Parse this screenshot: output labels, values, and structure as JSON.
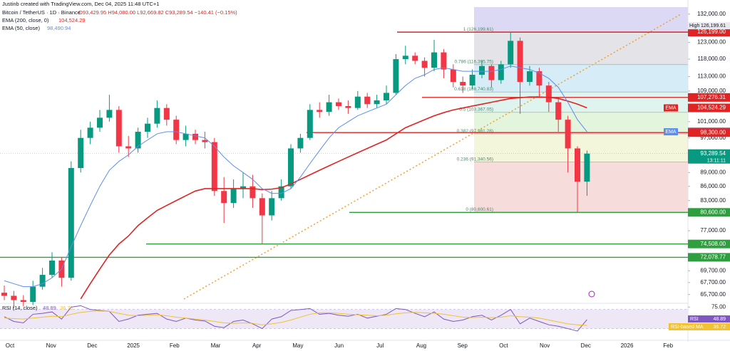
{
  "header": {
    "author_line": "Justinb created with TradingView.com, Dec 04, 2025 11:48 UTC+1",
    "symbol_line": "Bitcoin / TetherUS · 1D · Binance",
    "ohlc": "O93,429.95 H94,080.00 L92,669.82 C93,289.54 −140.41 (−0.15%)",
    "ema200_label": "EMA (200, close, 0)",
    "ema200_value": "104,524.29",
    "ema50_label": "EMA (50, close)",
    "ema50_value": "98,490.94"
  },
  "chart_data": [
    {
      "type": "candlestick",
      "log_scale": true,
      "grid": false,
      "up_color": "#089981",
      "down_color": "#f23645",
      "open": [
        66000,
        65500,
        64800,
        64500,
        67000,
        69000,
        71500,
        68500,
        90000,
        97000,
        99500,
        102000,
        104000,
        95000,
        94500,
        98500,
        100500,
        104500,
        101500,
        96500,
        98000,
        96500,
        96000,
        85000,
        82500,
        85500,
        86000,
        83500,
        80000,
        83500,
        86000,
        94500,
        97000,
        104000,
        103500,
        106000,
        105000,
        104500,
        107500,
        105500,
        106500,
        108500,
        118000,
        119000,
        117500,
        115500,
        120000,
        115000,
        111500,
        110500,
        113500,
        116000,
        112000,
        116500,
        123500,
        111500,
        114500,
        110500,
        106000,
        101500,
        94500,
        87000
      ],
      "high": [
        67200,
        66300,
        65600,
        68000,
        70200,
        73000,
        72000,
        91500,
        99000,
        101000,
        104000,
        108000,
        105000,
        97500,
        99500,
        102000,
        106500,
        105500,
        102500,
        100000,
        99000,
        98500,
        97000,
        88000,
        87500,
        89000,
        88500,
        84500,
        85000,
        87500,
        95500,
        98000,
        105500,
        106000,
        108000,
        107000,
        106500,
        109000,
        108500,
        108000,
        110500,
        119500,
        122000,
        120000,
        118500,
        123800,
        121000,
        116500,
        113000,
        115000,
        117500,
        116500,
        117500,
        126199,
        124500,
        116000,
        115500,
        111500,
        107000,
        102500,
        95000,
        94000
      ],
      "low": [
        64800,
        63500,
        63800,
        64000,
        66500,
        68500,
        67000,
        68000,
        89000,
        95500,
        98500,
        101000,
        93500,
        92500,
        93500,
        97000,
        99500,
        100000,
        95500,
        95000,
        95500,
        94500,
        84000,
        78500,
        81500,
        83500,
        81500,
        74500,
        79000,
        83000,
        85500,
        93500,
        96500,
        102000,
        102500,
        104000,
        103000,
        104000,
        104500,
        104500,
        105500,
        108000,
        116500,
        116500,
        113000,
        114500,
        112500,
        110000,
        108500,
        109500,
        112500,
        110000,
        111000,
        115500,
        103000,
        110500,
        107500,
        103500,
        98500,
        89000,
        80600,
        84000
      ],
      "close": [
        65500,
        64800,
        64500,
        67000,
        69000,
        71500,
        68500,
        90000,
        97000,
        99500,
        102000,
        104000,
        95000,
        94500,
        98500,
        100500,
        104500,
        101500,
        96500,
        98000,
        96500,
        96000,
        85000,
        82500,
        85500,
        86000,
        83500,
        80000,
        83500,
        86000,
        94500,
        97000,
        104000,
        103500,
        106000,
        105000,
        104500,
        107500,
        105500,
        106500,
        108500,
        118000,
        119000,
        117500,
        115500,
        120000,
        115000,
        111500,
        110500,
        113500,
        116000,
        112000,
        116500,
        123500,
        111500,
        114500,
        110500,
        106000,
        101500,
        94500,
        87000,
        93289.54
      ],
      "series": [
        {
          "name": "EMA",
          "color": "#e02424",
          "last_label": "104,524.29",
          "values": [
            null,
            null,
            null,
            null,
            null,
            null,
            null,
            null,
            65000,
            67500,
            70000,
            72500,
            74500,
            76000,
            78000,
            79500,
            81000,
            82000,
            83000,
            84000,
            85000,
            85500,
            85500,
            85500,
            85500,
            85500,
            85500,
            85300,
            85400,
            85700,
            86500,
            87500,
            88500,
            89500,
            90500,
            91500,
            92500,
            93500,
            94500,
            95500,
            96500,
            98000,
            99500,
            100500,
            101500,
            102500,
            103300,
            104000,
            104500,
            105000,
            105500,
            106000,
            106500,
            107000,
            107200,
            107400,
            107400,
            107300,
            107000,
            106300,
            105500,
            104524.29
          ]
        },
        {
          "name": "EMA",
          "color": "#5b8def",
          "last_label": "98,490.94",
          "values": [
            68000,
            67500,
            67000,
            67000,
            67500,
            68500,
            70000,
            74000,
            78000,
            82000,
            86000,
            89500,
            91500,
            93000,
            95000,
            96500,
            98000,
            98500,
            98500,
            98000,
            97500,
            97000,
            95000,
            92500,
            90500,
            89000,
            87500,
            85500,
            84500,
            84500,
            85500,
            88000,
            91000,
            94000,
            97000,
            99500,
            101000,
            102500,
            103500,
            104500,
            105500,
            108000,
            110500,
            112500,
            113500,
            115000,
            115500,
            115000,
            114500,
            114500,
            114500,
            114500,
            115000,
            116000,
            115500,
            115000,
            114000,
            112500,
            110000,
            106000,
            101500,
            98490.94
          ]
        }
      ],
      "ylim": [
        64400,
        134300
      ],
      "yticks": [
        {
          "value": 132000,
          "label": "132,000.00"
        },
        {
          "value": 123000,
          "label": "123,000.00"
        },
        {
          "value": 118000,
          "label": "118,000.00"
        },
        {
          "value": 113000,
          "label": "113,000.00"
        },
        {
          "value": 109000,
          "label": "109,000.00"
        },
        {
          "value": 101000,
          "label": "101,000.00"
        },
        {
          "value": 97000,
          "label": "97,000.00"
        },
        {
          "value": 89000,
          "label": "89,000.00"
        },
        {
          "value": 86000,
          "label": "86,000.00"
        },
        {
          "value": 83000,
          "label": "83,000.00"
        },
        {
          "value": 77000,
          "label": "77,000.00"
        },
        {
          "value": 69700,
          "label": "69,700.00"
        },
        {
          "value": 67700,
          "label": "67,700.00"
        },
        {
          "value": 65700,
          "label": "65,700.00"
        }
      ],
      "xticks": [
        "Oct",
        "Nov",
        "Dec",
        "2025",
        "Feb",
        "Mar",
        "Apr",
        "May",
        "Jun",
        "Jul",
        "Aug",
        "Sep",
        "Oct",
        "Nov",
        "Dec",
        "2026",
        "Feb"
      ],
      "levels": [
        {
          "value": 126199,
          "label": "126,199.00",
          "color": "#e02424"
        },
        {
          "value": 107276.31,
          "label": "107,276.31",
          "color": "#e02424"
        },
        {
          "value": 98300,
          "label": "98,300.00",
          "color": "#e02424"
        },
        {
          "value": 93289.54,
          "label": "93,289.54",
          "color": "#089981"
        },
        {
          "value": 80600,
          "label": "80,600.00",
          "color": "#2e9e3e"
        },
        {
          "value": 74508,
          "label": "74,508.00",
          "color": "#2e9e3e"
        },
        {
          "value": 72078.77,
          "label": "72,078.77",
          "color": "#2e9e3e"
        }
      ],
      "countdown": "13:11:11",
      "high_label": "High",
      "high_value": "126,199.61",
      "fib": {
        "colors": [
          "#e3e3e8",
          "#d6ecf7",
          "#dff3ef",
          "#e3f5dc",
          "#f4f6dc",
          "#f7dcdc"
        ],
        "line_color": "#8aa",
        "levels": [
          {
            "value": 126199.61,
            "label": "1 (126,199.61)"
          },
          {
            "value": 116395.75,
            "label": "0.786 (116,395.75)"
          },
          {
            "value": 108740.83,
            "label": "0.618 (108,740.83)"
          },
          {
            "value": 103367.05,
            "label": "0.5 (103,367.05)"
          },
          {
            "value": 97981.28,
            "label": "0.382 (97,981.28)"
          },
          {
            "value": 91340.56,
            "label": "0.236 (91,340.56)"
          },
          {
            "value": 80600.61,
            "label": "0 (80,600.61)"
          }
        ]
      }
    },
    {
      "type": "line",
      "title": "RSI (14, close)",
      "ylim": [
        10,
        80
      ],
      "yticks": [
        {
          "value": 75,
          "label": "75.00"
        }
      ],
      "band": [
        30,
        70
      ],
      "band_color": "#ede7f6",
      "series": [
        {
          "name": "RSI",
          "color": "#7e57c2",
          "last_label": "48.89",
          "values": [
            55,
            45,
            42,
            60,
            62,
            65,
            50,
            75,
            78,
            70,
            68,
            66,
            45,
            50,
            58,
            60,
            62,
            50,
            45,
            52,
            48,
            46,
            35,
            32,
            45,
            48,
            40,
            30,
            50,
            55,
            68,
            70,
            72,
            60,
            62,
            58,
            56,
            60,
            52,
            56,
            60,
            72,
            70,
            62,
            55,
            65,
            50,
            45,
            48,
            55,
            58,
            48,
            58,
            70,
            40,
            52,
            45,
            38,
            35,
            30,
            25,
            48.89
          ]
        },
        {
          "name": "RSI-based MA",
          "color": "#f2c230",
          "last_label": "36.72",
          "values": [
            52,
            51,
            50,
            52,
            54,
            56,
            55,
            60,
            64,
            66,
            67,
            66,
            62,
            58,
            57,
            58,
            59,
            57,
            54,
            52,
            50,
            48,
            45,
            42,
            41,
            42,
            41,
            38,
            40,
            43,
            48,
            54,
            60,
            63,
            63,
            62,
            60,
            59,
            58,
            57,
            58,
            61,
            63,
            64,
            63,
            62,
            60,
            57,
            54,
            53,
            54,
            53,
            54,
            57,
            55,
            54,
            52,
            48,
            44,
            40,
            38,
            36.72
          ]
        }
      ]
    }
  ]
}
